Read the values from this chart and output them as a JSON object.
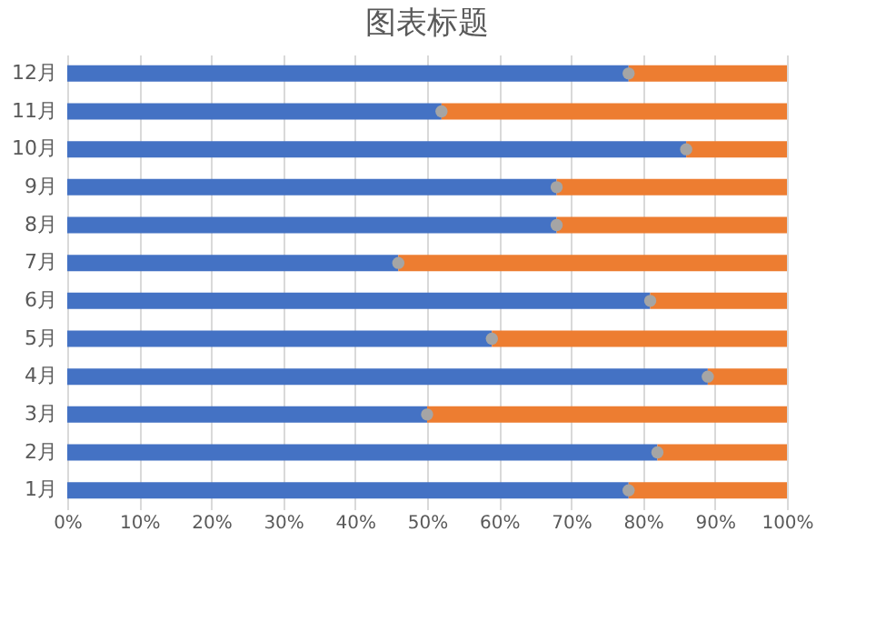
{
  "chart_data": {
    "type": "bar",
    "title": "图表标题",
    "orientation": "horizontal",
    "stacked": true,
    "categories": [
      "12月",
      "11月",
      "10月",
      "9月",
      "8月",
      "7月",
      "6月",
      "5月",
      "4月",
      "3月",
      "2月",
      "1月"
    ],
    "series": [
      {
        "color": "#4472c4",
        "values": [
          78,
          52,
          86,
          68,
          68,
          46,
          81,
          59,
          89,
          50,
          82,
          78
        ]
      },
      {
        "color": "#ed7d31",
        "values": [
          22,
          48,
          14,
          32,
          32,
          54,
          19,
          41,
          11,
          50,
          18,
          22
        ]
      },
      {
        "type": "scatter",
        "color": "#a5a5a5",
        "marker": "circle",
        "x": [
          "12月",
          "11月",
          "10月",
          "9月",
          "8月",
          "7月",
          "6月",
          "5月",
          "4月",
          "3月",
          "2月",
          "1月"
        ],
        "values": [
          78,
          52,
          86,
          68,
          68,
          46,
          81,
          59,
          89,
          50,
          82,
          78
        ]
      }
    ],
    "xlim": [
      0,
      100
    ],
    "xticks": [
      {
        "value": 0,
        "label": "0%"
      },
      {
        "value": 10,
        "label": "10%"
      },
      {
        "value": 20,
        "label": "20%"
      },
      {
        "value": 30,
        "label": "30%"
      },
      {
        "value": 40,
        "label": "40%"
      },
      {
        "value": 50,
        "label": "50%"
      },
      {
        "value": 60,
        "label": "60%"
      },
      {
        "value": 70,
        "label": "70%"
      },
      {
        "value": 80,
        "label": "80%"
      },
      {
        "value": 90,
        "label": "90%"
      },
      {
        "value": 100,
        "label": "100%"
      }
    ],
    "grid": "x"
  }
}
